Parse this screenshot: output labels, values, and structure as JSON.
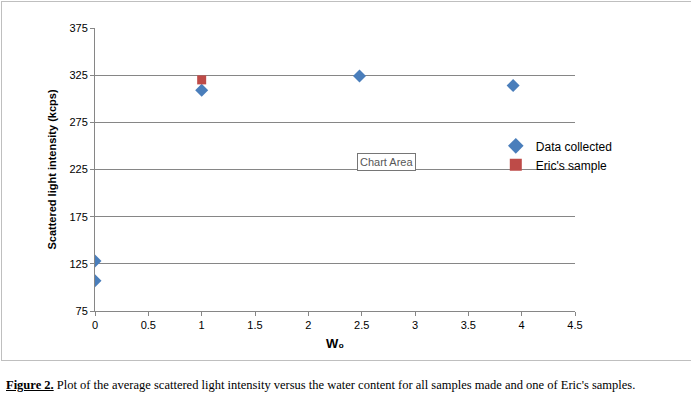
{
  "chart_data": {
    "type": "scatter",
    "x_label": "W₀",
    "y_label": "Scattered light intensity (kcps)",
    "series": [
      {
        "name": "Data collected",
        "color": "#4a7ebb",
        "marker": "diamond",
        "x": [
          0,
          0,
          1,
          2.48,
          3.92
        ],
        "values": [
          128,
          107,
          309,
          324,
          314
        ]
      },
      {
        "name": "Eric's sample",
        "color": "#be4b48",
        "marker": "square",
        "x": [
          1
        ],
        "values": [
          320
        ]
      }
    ],
    "xlim": [
      0,
      4.5
    ],
    "xticks": [
      0,
      0.5,
      1,
      1.5,
      2,
      2.5,
      3,
      3.5,
      4,
      4.5
    ],
    "ylim": [
      75,
      375
    ],
    "yticks": [
      75,
      125,
      175,
      225,
      275,
      325,
      375
    ],
    "grid": "y",
    "legend": "right",
    "annotations": [
      "Chart Area"
    ],
    "caption": {
      "label": "Figure 2.",
      "text": "Plot of the average scattered light intensity versus the water content for all samples made and one of Eric's samples."
    }
  }
}
